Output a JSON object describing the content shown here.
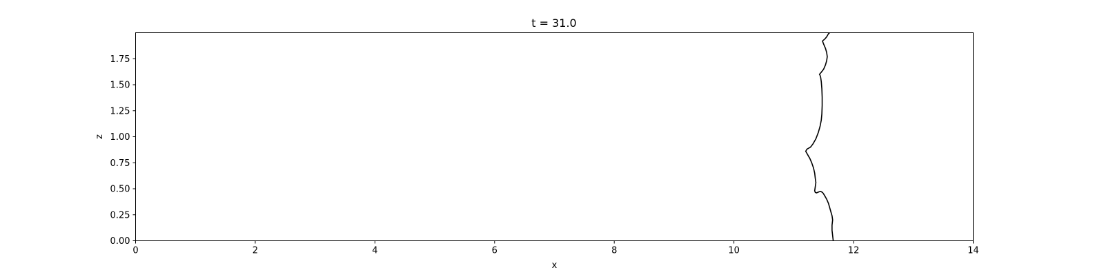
{
  "chart_data": {
    "type": "line",
    "title": "t = 31.0",
    "xlabel": "x",
    "ylabel": "z",
    "xlim": [
      0,
      14
    ],
    "ylim": [
      0,
      2.0
    ],
    "xticks": [
      0,
      2,
      4,
      6,
      8,
      10,
      12,
      14
    ],
    "xtick_labels": [
      "0",
      "2",
      "4",
      "6",
      "8",
      "10",
      "12",
      "14"
    ],
    "yticks": [
      0,
      0.25,
      0.5,
      0.75,
      1.0,
      1.25,
      1.5,
      1.75
    ],
    "ytick_labels": [
      "0.00",
      "0.25",
      "0.50",
      "0.75",
      "1.00",
      "1.25",
      "1.50",
      "1.75"
    ],
    "grid": false,
    "line_color": "#000000",
    "series": [
      {
        "x": [
          11.66,
          11.65,
          11.64,
          11.64,
          11.65,
          11.64,
          11.62,
          11.6,
          11.58,
          11.55,
          11.52,
          11.5,
          11.48,
          11.45,
          11.42,
          11.4,
          11.38,
          11.36,
          11.35,
          11.36,
          11.37,
          11.36,
          11.35,
          11.33,
          11.3,
          11.27,
          11.24,
          11.22,
          11.2,
          11.22,
          11.25,
          11.28,
          11.32,
          11.37,
          11.41,
          11.44,
          11.46,
          11.47,
          11.475,
          11.475,
          11.47,
          11.46,
          11.45,
          11.44,
          11.43,
          11.46,
          11.5,
          11.53,
          11.55,
          11.56,
          11.55,
          11.53,
          11.5,
          11.48,
          11.52,
          11.55,
          11.56,
          11.58,
          11.6
        ],
        "y": [
          0.0,
          0.05,
          0.1,
          0.15,
          0.2,
          0.24,
          0.28,
          0.32,
          0.36,
          0.4,
          0.43,
          0.45,
          0.465,
          0.475,
          0.47,
          0.465,
          0.46,
          0.465,
          0.48,
          0.52,
          0.56,
          0.6,
          0.65,
          0.7,
          0.75,
          0.79,
          0.82,
          0.84,
          0.86,
          0.88,
          0.89,
          0.9,
          0.93,
          0.98,
          1.04,
          1.1,
          1.16,
          1.22,
          1.3,
          1.38,
          1.46,
          1.53,
          1.57,
          1.59,
          1.6,
          1.62,
          1.65,
          1.69,
          1.73,
          1.77,
          1.81,
          1.85,
          1.89,
          1.92,
          1.94,
          1.96,
          1.97,
          1.99,
          2.0
        ]
      }
    ]
  }
}
